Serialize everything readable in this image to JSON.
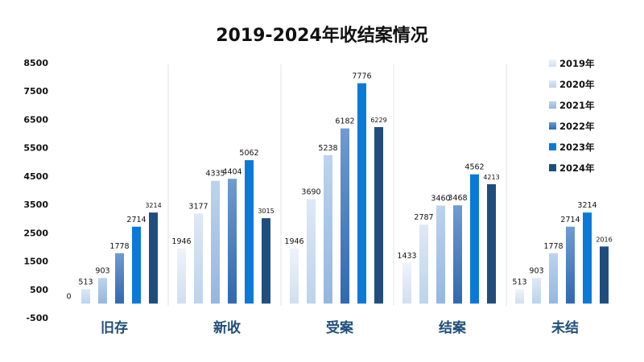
{
  "chart_data": {
    "type": "bar",
    "title": "2019-2024年收结案情况",
    "categories": [
      "旧存",
      "新收",
      "受案",
      "结案",
      "未结"
    ],
    "series": [
      {
        "name": "2019年",
        "values": [
          0,
          1946,
          1946,
          1433,
          513
        ]
      },
      {
        "name": "2020年",
        "values": [
          513,
          3177,
          3690,
          2787,
          903
        ]
      },
      {
        "name": "2021年",
        "values": [
          903,
          4335,
          5238,
          3460,
          1778
        ]
      },
      {
        "name": "2022年",
        "values": [
          1778,
          4404,
          6182,
          3468,
          2714
        ]
      },
      {
        "name": "2023年",
        "values": [
          2714,
          5062,
          7776,
          4562,
          3214
        ]
      },
      {
        "name": "2024年",
        "values": [
          3214,
          3015,
          6229,
          4213,
          2016
        ]
      }
    ],
    "yticks": [
      "8500",
      "7500",
      "6500",
      "5500",
      "4500",
      "3500",
      "2500",
      "1500",
      "500",
      "-500"
    ],
    "ylim": [
      -500,
      8500
    ],
    "legend_position": "right",
    "grid": false,
    "colors": {
      "2019年": "#dfe9f5",
      "2020年": "#cddff2",
      "2021年": "#a9c6e6",
      "2022年": "#3f78bd",
      "2023年": "#0a7ad6",
      "2024年": "#1f4e7d",
      "category_label": "#1f4e79"
    }
  }
}
